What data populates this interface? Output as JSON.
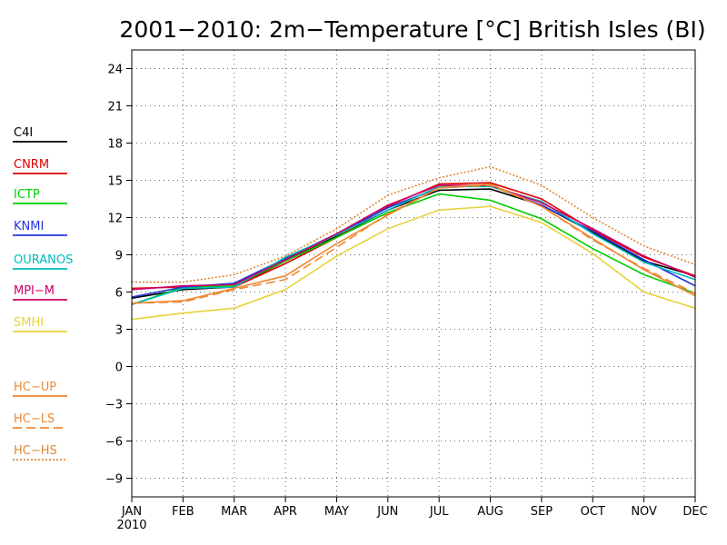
{
  "chart_data": {
    "type": "line",
    "title": "2001−2010: 2m−Temperature [°C] British Isles (BI)",
    "xlabel": "",
    "ylabel": "",
    "categories": [
      "JAN",
      "FEB",
      "MAR",
      "APR",
      "MAY",
      "JUN",
      "JUL",
      "AUG",
      "SEP",
      "OCT",
      "NOV",
      "DEC"
    ],
    "year_label": "2010",
    "ylim": [
      -10.5,
      25.5
    ],
    "yticks": [
      24,
      21,
      18,
      15,
      12,
      9,
      6,
      3,
      0,
      -3,
      -6,
      -9
    ],
    "ytick_labels": [
      "24",
      "21",
      "18",
      "15",
      "12",
      "9",
      "6",
      "3",
      "0",
      "−3",
      "−6",
      "−9"
    ],
    "grid": true,
    "legend_position": "left",
    "series": [
      {
        "name": "C4I",
        "color": "#000000",
        "dash": "solid",
        "values": [
          5.5,
          6.2,
          6.4,
          8.5,
          10.5,
          12.6,
          14.2,
          14.3,
          13.0,
          10.8,
          8.5,
          7.3
        ]
      },
      {
        "name": "CNRM",
        "color": "#dd0000",
        "dash": "solid",
        "values": [
          6.3,
          6.4,
          6.4,
          8.3,
          10.4,
          12.9,
          14.7,
          14.8,
          13.5,
          11.0,
          8.8,
          7.3
        ]
      },
      {
        "name": "ICTP",
        "color": "#00cc00",
        "dash": "solid",
        "values": [
          5.0,
          6.4,
          6.5,
          8.5,
          10.4,
          12.4,
          13.9,
          13.4,
          11.9,
          9.5,
          7.4,
          5.9
        ]
      },
      {
        "name": "KNMI",
        "color": "#2233dd",
        "dash": "solid",
        "values": [
          5.6,
          6.4,
          6.7,
          8.7,
          10.7,
          12.8,
          14.4,
          14.6,
          13.0,
          10.9,
          8.6,
          6.5
        ]
      },
      {
        "name": "OURANOS",
        "color": "#00bbbb",
        "dash": "solid",
        "values": [
          5.0,
          6.3,
          6.4,
          8.8,
          10.6,
          12.6,
          14.5,
          14.5,
          13.3,
          10.7,
          8.4,
          7.0
        ]
      },
      {
        "name": "MPI−M",
        "color": "#cc0066",
        "dash": "solid",
        "values": [
          6.2,
          6.5,
          6.6,
          8.6,
          10.7,
          13.0,
          14.6,
          14.6,
          13.2,
          11.1,
          8.9,
          7.2
        ]
      },
      {
        "name": "SMHI",
        "color": "#e6d33a",
        "dash": "solid",
        "values": [
          3.8,
          4.3,
          4.7,
          6.2,
          8.9,
          11.1,
          12.6,
          12.9,
          11.6,
          9.1,
          6.0,
          4.7
        ]
      },
      {
        "name": "HC−UP",
        "color": "#ee8833",
        "dash": "solid",
        "values": [
          5.1,
          5.3,
          6.3,
          7.3,
          9.9,
          12.2,
          14.4,
          14.7,
          12.9,
          10.3,
          7.8,
          5.7
        ]
      },
      {
        "name": "HC−LS",
        "color": "#ee8833",
        "dash": "dashed",
        "values": [
          5.1,
          5.2,
          6.2,
          7.0,
          9.6,
          12.3,
          14.4,
          14.6,
          12.9,
          10.2,
          7.9,
          5.9
        ]
      },
      {
        "name": "HC−HS",
        "color": "#dd8833",
        "dash": "dotted",
        "values": [
          6.8,
          6.8,
          7.4,
          8.9,
          11.1,
          13.8,
          15.2,
          16.1,
          14.6,
          12.0,
          9.7,
          8.2
        ]
      }
    ]
  }
}
